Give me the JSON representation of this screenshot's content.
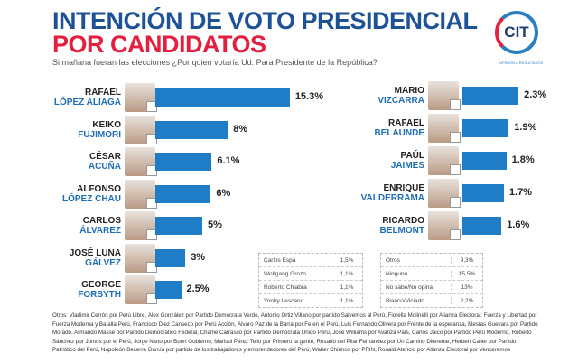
{
  "header": {
    "title_line1": "INTENCIÓN DE VOTO PRESIDENCIAL",
    "title_line2": "POR CANDIDATOS",
    "question": "Si mañana fueran las elecciones ¿Por quien votaría Ud. Para Presidente de la República?",
    "logo_text": "CIT",
    "logo_sub": "OPINIÓN & RESULTADOS",
    "colors": {
      "title_blue": "#1d5296",
      "title_red": "#e3203f",
      "bar": "#1f7dc8"
    }
  },
  "chart_data": [
    {
      "type": "bar",
      "orientation": "horizontal",
      "categories": [
        "RAFAEL LÓPEZ ALIAGA",
        "KEIKO FUJIMORI",
        "CÉSAR ACUÑA",
        "ALFONSO LÓPEZ CHAU",
        "CARLOS ÁLVAREZ",
        "JOSÉ LUNA GÁLVEZ",
        "GEORGE FORSYTH"
      ],
      "first": [
        "RAFAEL",
        "KEIKO",
        "CÉSAR",
        "ALFONSO",
        "CARLOS",
        "JOSÉ LUNA",
        "GEORGE"
      ],
      "last": [
        "LÓPEZ ALIAGA",
        "FUJIMORI",
        "ACUÑA",
        "LÓPEZ CHAU",
        "ÁLVAREZ",
        "GÁLVEZ",
        "FORSYTH"
      ],
      "values": [
        15.3,
        8,
        6.1,
        6,
        5,
        3,
        2.5
      ],
      "labels": [
        "15.3%",
        "8%",
        "6.1%",
        "6%",
        "5%",
        "3%",
        "2.5%"
      ]
    },
    {
      "type": "bar",
      "orientation": "horizontal",
      "categories": [
        "MARIO VIZCARRA",
        "RAFAEL BELAUNDE",
        "PAÚL JAIMES",
        "ENRIQUE VALDERRAMA",
        "RICARDO BELMONT"
      ],
      "first": [
        "MARIO",
        "RAFAEL",
        "PAÚL",
        "ENRIQUE",
        "RICARDO"
      ],
      "last": [
        "VIZCARRA",
        "BELAUNDE",
        "JAIMES",
        "VALDERRAMA",
        "BELMONT"
      ],
      "values": [
        2.3,
        1.9,
        1.8,
        1.7,
        1.6
      ],
      "labels": [
        "2.3%",
        "1.9%",
        "1.8%",
        "1.7%",
        "1.6%"
      ]
    },
    {
      "type": "table",
      "rows": [
        [
          "Carlos Espá",
          "1,5%"
        ],
        [
          "Wolfgang Grozo",
          "1,1%"
        ],
        [
          "Roberto Chiabra",
          "1,1%"
        ],
        [
          "Yonhy Lescano",
          "1,1%"
        ]
      ]
    },
    {
      "type": "table",
      "rows": [
        [
          "Otros",
          "9,3%"
        ],
        [
          "Ninguno",
          "15,5%"
        ],
        [
          "No sabe/No opina",
          "13%"
        ],
        [
          "Blanco/Viciado",
          "2,2%"
        ]
      ]
    }
  ],
  "footnote": "Otros: Vladimir Cerrón por Perú Libre, Álex González por Partido Demócrata Verde, Antonio Ortiz Villano por partido Salvemos al Perú, Fiorella Molinelli por Alianza Electoral: Fuerza y Libertad por Fuerza Moderna y Batalla Perú, Francisco Diez Canseco por Perú Acción, Álvaro Paz de la Barra por Fe en el Perú, Luis Fernando Olivera por Frente de la esperanza, Mesías Guevara por Partido Morado, Armando Massé por Partido Democrático Federal, Charlie Carrasco por Partido Demócrata Unido Perú, José Williams por Avanza País, Carlos Jaico por Partido Perú Moderno, Roberto Sánchez por Juntos por el Perú, Jorge Nieto por Buen Gobierno, Marisol Pérez Tello por Primero la gente, Rosario del Pilar Fernández por Un Camino Diferente, Herbert Caller por Partido Patriótico del Perú, Napoleón Becerra García por partido de los trabajadores y emprendedores del Perú, Walter Chirinos por PRIN, Ronald Atencio por Alianza Electoral por Venceremos"
}
